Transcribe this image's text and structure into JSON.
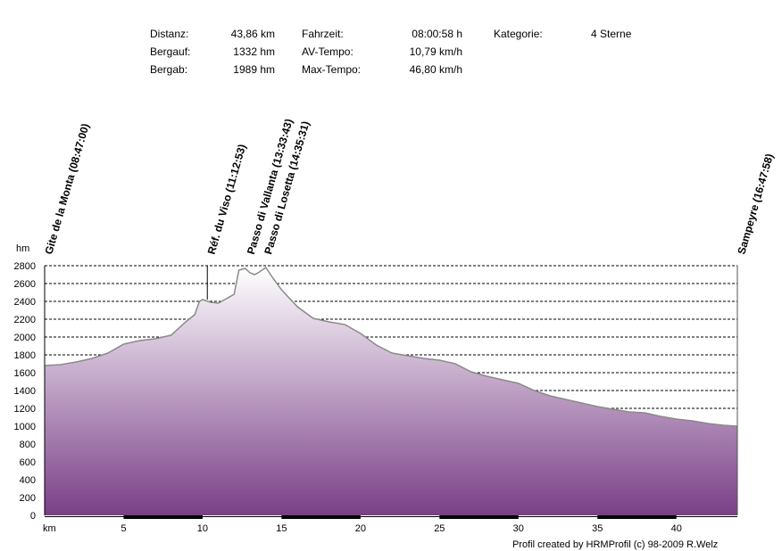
{
  "stats": {
    "col1": [
      {
        "label": "Distanz:",
        "value": "43,86 km"
      },
      {
        "label": "Bergauf:",
        "value": "1332 hm"
      },
      {
        "label": "Bergab:",
        "value": "1989 hm"
      }
    ],
    "col2": [
      {
        "label": "Fahrzeit:",
        "value": "08:00:58 h"
      },
      {
        "label": "AV-Tempo:",
        "value": "10,79 km/h"
      },
      {
        "label": "Max-Tempo:",
        "value": "46,80 km/h"
      }
    ],
    "col3": [
      {
        "label": "Kategorie:",
        "value": "4 Sterne"
      }
    ]
  },
  "footer": "Profil created by HRMProfil (c) 98-2009 R.Welz",
  "chart_data": {
    "type": "area",
    "ylabel": "hm",
    "xlabel": "km",
    "xlim": [
      0,
      43.86
    ],
    "ylim": [
      0,
      2800
    ],
    "yticks": [
      0,
      200,
      400,
      600,
      800,
      1000,
      1200,
      1400,
      1600,
      1800,
      2000,
      2200,
      2400,
      2600,
      2800
    ],
    "xticks": [
      5,
      10,
      15,
      20,
      25,
      30,
      35,
      40
    ],
    "grid": true,
    "fill_top_color": "#ffffff",
    "fill_bottom_color": "#7a3f87",
    "line_color": "#8a8a8a",
    "x": [
      0,
      1,
      2,
      3,
      4,
      5,
      6,
      7,
      8,
      9,
      9.5,
      9.8,
      10,
      10.5,
      11,
      11.5,
      12,
      12.3,
      12.7,
      13,
      13.3,
      13.6,
      14,
      14.5,
      15,
      16,
      17,
      18,
      19,
      20,
      21,
      22,
      23,
      24,
      25,
      26,
      27,
      28,
      29,
      30,
      31,
      32,
      33,
      34,
      35,
      36,
      37,
      38,
      39,
      40,
      41,
      42,
      43,
      43.86
    ],
    "y": [
      1680,
      1690,
      1720,
      1760,
      1820,
      1920,
      1960,
      1980,
      2020,
      2180,
      2250,
      2400,
      2420,
      2390,
      2380,
      2430,
      2480,
      2750,
      2770,
      2720,
      2700,
      2730,
      2780,
      2650,
      2530,
      2340,
      2210,
      2170,
      2140,
      2040,
      1910,
      1820,
      1790,
      1760,
      1740,
      1700,
      1610,
      1560,
      1520,
      1480,
      1400,
      1340,
      1300,
      1260,
      1220,
      1190,
      1160,
      1150,
      1110,
      1080,
      1060,
      1030,
      1010,
      1000
    ],
    "waypoints": [
      {
        "label": "Gite de la Monta (08:47:00)",
        "x": 0
      },
      {
        "label": "Réf. du Viso (11:12:53)",
        "x": 10.3
      },
      {
        "label": "Passo di Vallanta (13:33:43)",
        "x": 12.8
      },
      {
        "label": "Passo di Losetta (14:35:31)",
        "x": 13.9
      },
      {
        "label": "Sampeyre (16:47:58)",
        "x": 43.86
      }
    ]
  }
}
